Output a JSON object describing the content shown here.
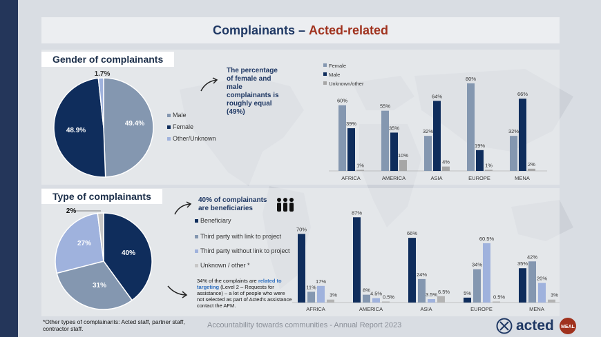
{
  "header": {
    "title_part1": "Complainants – ",
    "title_part2": "Acted-related"
  },
  "gender_section": {
    "title": "Gender of complainants",
    "callout": "The percentage of female and male complainants is roughly equal (49%)"
  },
  "type_section": {
    "title": "Type of complainants",
    "callout": "40% of complainants are beneficiaries",
    "note_part1": "34%  of the complaints are ",
    "note_highlight": "related to targeting",
    "note_part2": " (Level 2 – Requests for assistance) – a lot of people who were not selected as part of Acted’s assistance contact the AFM."
  },
  "colors": {
    "navy": "#0f2d5c",
    "slate": "#8497b0",
    "lightblue": "#9fb2dd",
    "grey": "#a6a6a6",
    "accent_red": "#a0321e"
  },
  "footer": {
    "text": "Accountability towards communities - Annual Report 2023",
    "note": "*Other types of complainants: Acted staff, partner staff, contractor staff.",
    "logo_text": "acted",
    "badge_text": "MEAL"
  },
  "chart_data": [
    {
      "type": "pie",
      "labels": [
        "Male",
        "Female",
        "Other/Unknown"
      ],
      "values": [
        49.4,
        48.9,
        1.7
      ],
      "data_labels": [
        "49.4%",
        "48.9%",
        "1.7%"
      ]
    },
    {
      "type": "bar",
      "categories": [
        "AFRICA",
        "AMERICA",
        "ASIA",
        "EUROPE",
        "MENA"
      ],
      "series": [
        {
          "name": "Female",
          "values": [
            60,
            55,
            32,
            80,
            32
          ]
        },
        {
          "name": "Male",
          "values": [
            39,
            35,
            64,
            19,
            66
          ]
        },
        {
          "name": "Unknown/other",
          "values": [
            1,
            10,
            4,
            1,
            2
          ]
        }
      ],
      "ylim": [
        0,
        85
      ]
    },
    {
      "type": "pie",
      "labels": [
        "Beneficiary",
        "Third party with link to project",
        "Third party without link to project",
        "Unknown / other *"
      ],
      "values": [
        40,
        31,
        27,
        2
      ],
      "data_labels": [
        "40%",
        "31%",
        "27%",
        "2%"
      ]
    },
    {
      "type": "bar",
      "categories": [
        "AFRICA",
        "AMERICA",
        "ASIA",
        "EUROPE",
        "MENA"
      ],
      "series": [
        {
          "name": "Beneficiary",
          "values": [
            70,
            87,
            66,
            5,
            35
          ]
        },
        {
          "name": "Third party with link to project",
          "values": [
            11,
            8,
            24,
            34,
            42
          ]
        },
        {
          "name": "Third party without link to project",
          "values": [
            17,
            4.5,
            3.5,
            60.5,
            20
          ]
        },
        {
          "name": "Unknown / other *",
          "values": [
            3,
            0.5,
            6.5,
            0.5,
            3
          ]
        }
      ],
      "data_labels": [
        [
          "70%",
          "11%",
          "17%",
          "3%"
        ],
        [
          "87%",
          "8%",
          "4.5%",
          "0.5%"
        ],
        [
          "66%",
          "24%",
          "3.5%",
          "6.5%"
        ],
        [
          "5%",
          "34%",
          "60.5%",
          "0.5%"
        ],
        [
          "35%",
          "42%",
          "20%",
          "3%"
        ]
      ],
      "ylim": [
        0,
        90
      ]
    }
  ]
}
